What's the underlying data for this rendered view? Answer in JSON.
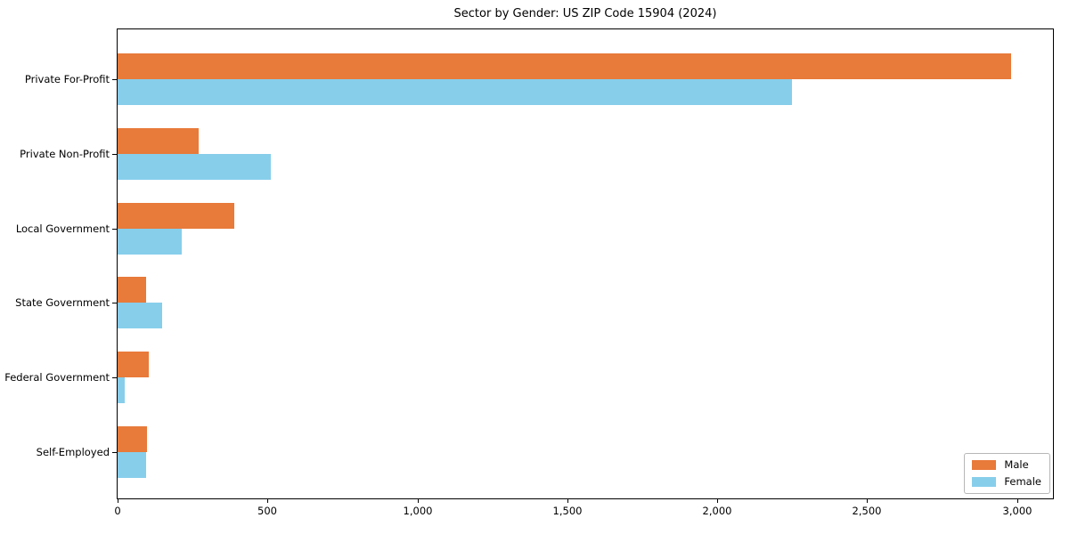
{
  "chart_data": {
    "type": "bar",
    "orientation": "horizontal",
    "title": "Sector by Gender: US ZIP Code 15904 (2024)",
    "categories": [
      "Private For-Profit",
      "Private Non-Profit",
      "Local Government",
      "State Government",
      "Federal Government",
      "Self-Employed"
    ],
    "series": [
      {
        "name": "Male",
        "color": "#E87A3A",
        "values": [
          2980,
          270,
          390,
          95,
          105,
          98
        ]
      },
      {
        "name": "Female",
        "color": "#87CEEB",
        "values": [
          2250,
          510,
          215,
          150,
          25,
          95
        ]
      }
    ],
    "xlabel": "",
    "ylabel": "",
    "xlim": [
      0,
      3120
    ],
    "xticks": [
      0,
      500,
      1000,
      1500,
      2000,
      2500,
      3000
    ],
    "xtick_labels": [
      "0",
      "500",
      "1,000",
      "1,500",
      "2,000",
      "2,500",
      "3,000"
    ],
    "grid": false,
    "legend_position": "lower right",
    "bar_order_within_group": [
      "Male",
      "Female"
    ]
  }
}
